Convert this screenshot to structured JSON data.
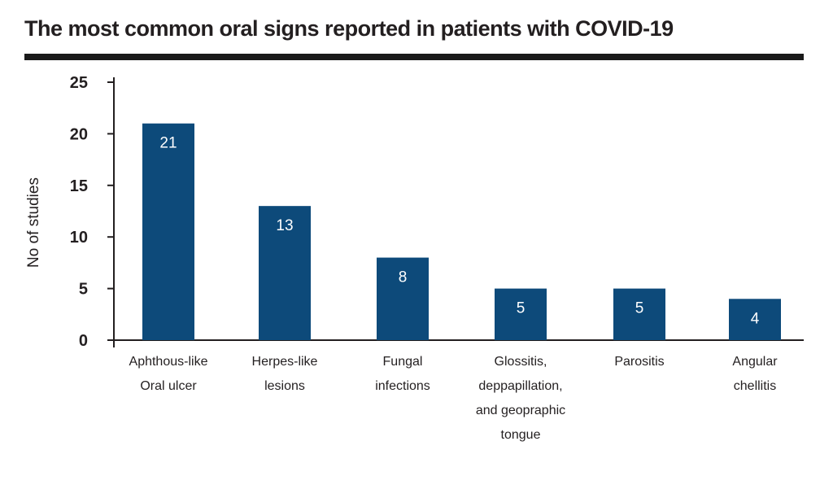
{
  "page": {
    "title": "The most common oral signs reported in patients with COVID-19"
  },
  "chart_data": {
    "type": "bar",
    "title": "The most common oral signs reported in patients with COVID-19",
    "xlabel": "",
    "ylabel": "No of studies",
    "ylim": [
      0,
      25
    ],
    "yticks": [
      0,
      5,
      10,
      15,
      20,
      25
    ],
    "grid": false,
    "legend": "none",
    "categories": [
      [
        "Aphthous-like",
        "Oral ulcer"
      ],
      [
        "Herpes-like",
        "lesions"
      ],
      [
        "Fungal",
        "infections"
      ],
      [
        "Glossitis,",
        "deppapillation,",
        "and geopraphic",
        "tongue"
      ],
      [
        "Parositis"
      ],
      [
        "Angular",
        "chellitis"
      ]
    ],
    "values": [
      21,
      13,
      8,
      5,
      5,
      4
    ],
    "colors": {
      "bar": "#0d4a7a",
      "axis": "#231f20",
      "data_label": "#ffffff"
    }
  }
}
